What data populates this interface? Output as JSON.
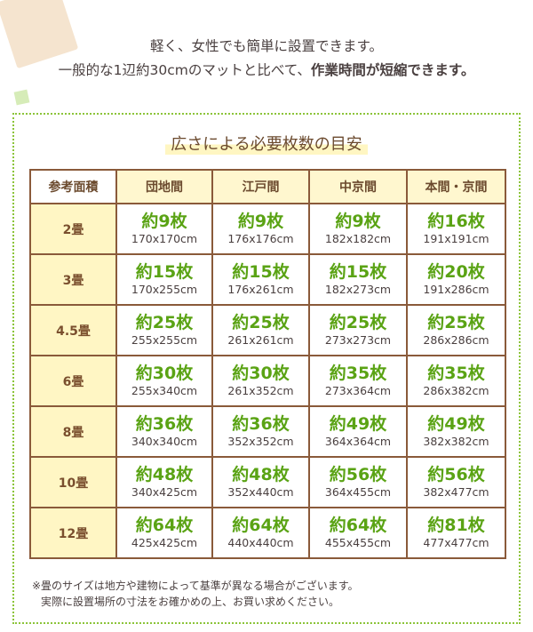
{
  "intro": {
    "line1": "軽く、女性でも簡単に設置できます。",
    "line2_plain": "一般的な1辺約30cmのマットと比べて、",
    "line2_bold": "作業時間が短縮できます。"
  },
  "title": "広さによる必要枚数の目安",
  "table": {
    "headers": [
      "参考面積",
      "団地間",
      "江戸間",
      "中京間",
      "本間・京間"
    ],
    "rows": [
      {
        "label": "2畳",
        "cells": [
          {
            "count": "約9枚",
            "size": "170x170cm"
          },
          {
            "count": "約9枚",
            "size": "176x176cm"
          },
          {
            "count": "約9枚",
            "size": "182x182cm"
          },
          {
            "count": "約16枚",
            "size": "191x191cm"
          }
        ]
      },
      {
        "label": "3畳",
        "cells": [
          {
            "count": "約15枚",
            "size": "170x255cm"
          },
          {
            "count": "約15枚",
            "size": "176x261cm"
          },
          {
            "count": "約15枚",
            "size": "182x273cm"
          },
          {
            "count": "約20枚",
            "size": "191x286cm"
          }
        ]
      },
      {
        "label": "4.5畳",
        "cells": [
          {
            "count": "約25枚",
            "size": "255x255cm"
          },
          {
            "count": "約25枚",
            "size": "261x261cm"
          },
          {
            "count": "約25枚",
            "size": "273x273cm"
          },
          {
            "count": "約25枚",
            "size": "286x286cm"
          }
        ]
      },
      {
        "label": "6畳",
        "cells": [
          {
            "count": "約30枚",
            "size": "255x340cm"
          },
          {
            "count": "約30枚",
            "size": "261x352cm"
          },
          {
            "count": "約35枚",
            "size": "273x364cm"
          },
          {
            "count": "約35枚",
            "size": "286x382cm"
          }
        ]
      },
      {
        "label": "8畳",
        "cells": [
          {
            "count": "約36枚",
            "size": "340x340cm"
          },
          {
            "count": "約36枚",
            "size": "352x352cm"
          },
          {
            "count": "約49枚",
            "size": "364x364cm"
          },
          {
            "count": "約49枚",
            "size": "382x382cm"
          }
        ]
      },
      {
        "label": "10畳",
        "cells": [
          {
            "count": "約48枚",
            "size": "340x425cm"
          },
          {
            "count": "約48枚",
            "size": "352x440cm"
          },
          {
            "count": "約56枚",
            "size": "364x455cm"
          },
          {
            "count": "約56枚",
            "size": "382x477cm"
          }
        ]
      },
      {
        "label": "12畳",
        "cells": [
          {
            "count": "約64枚",
            "size": "425x425cm"
          },
          {
            "count": "約64枚",
            "size": "440x440cm"
          },
          {
            "count": "約64枚",
            "size": "455x455cm"
          },
          {
            "count": "約81枚",
            "size": "477x477cm"
          }
        ]
      }
    ]
  },
  "notes": {
    "line1": "※畳のサイズは地方や建物によって基準が異なる場合がございます。",
    "line2": "実際に設置場所の寸法をお確かめの上、お買い求めください。"
  },
  "colors": {
    "count_green": "#5aa314",
    "border_brown": "#8a5a3a",
    "header_yellow": "#fff7cf",
    "frame_green": "#8cc43a"
  }
}
